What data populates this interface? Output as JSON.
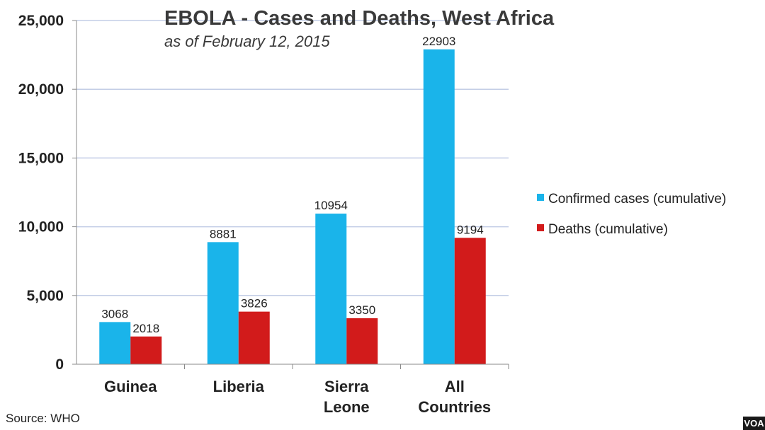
{
  "chart_data": {
    "type": "bar",
    "title": "EBOLA - Cases and Deaths, West Africa",
    "subtitle": "as of February 12, 2015",
    "categories": [
      [
        "Guinea"
      ],
      [
        "Liberia"
      ],
      [
        "Sierra",
        "Leone"
      ],
      [
        "All",
        "Countries"
      ]
    ],
    "series": [
      {
        "name": "Confirmed cases (cumulative)",
        "color": "#1ab4ea",
        "values": [
          3068,
          8881,
          10954,
          22903
        ]
      },
      {
        "name": "Deaths (cumulative)",
        "color": "#d21b1b",
        "values": [
          2018,
          3826,
          3350,
          9194
        ]
      }
    ],
    "ylim": [
      0,
      25000
    ],
    "yticks": [
      0,
      5000,
      10000,
      15000,
      20000,
      25000
    ],
    "ytick_labels": [
      "0",
      "5,000",
      "10,000",
      "15,000",
      "20,000",
      "25,000"
    ],
    "grid": true,
    "legend_position": "right",
    "xlabel": "",
    "ylabel": ""
  },
  "source": "Source: WHO",
  "logo": "VOA"
}
